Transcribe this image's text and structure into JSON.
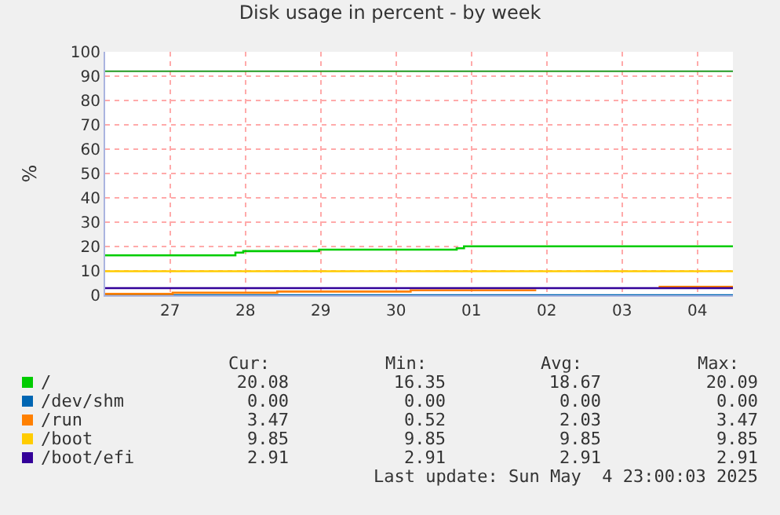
{
  "chart_data": {
    "type": "step",
    "title": "Disk usage in percent - by week",
    "ylabel": "%",
    "xlim": [
      "2025-04-26T15:20",
      "2025-05-04T23:20"
    ],
    "xticks": [
      {
        "value": "2025-04-27T12:00",
        "label": "27"
      },
      {
        "value": "2025-04-28T12:00",
        "label": "28"
      },
      {
        "value": "2025-04-29T12:00",
        "label": "29"
      },
      {
        "value": "2025-04-30T12:00",
        "label": "30"
      },
      {
        "value": "2025-05-01T12:00",
        "label": "01"
      },
      {
        "value": "2025-05-02T12:00",
        "label": "02"
      },
      {
        "value": "2025-05-03T12:00",
        "label": "03"
      },
      {
        "value": "2025-05-04T12:00",
        "label": "04"
      }
    ],
    "ylim": [
      0,
      100
    ],
    "yticks": [
      0,
      10,
      20,
      30,
      40,
      50,
      60,
      70,
      80,
      90,
      100
    ],
    "grid": true,
    "legend": "bottom",
    "marker": "none",
    "line_style": "solid",
    "series": [
      {
        "name": "/",
        "color": "#00cc00",
        "x": [
          "2025-04-26T15:20",
          "2025-04-28T08:50",
          "2025-04-28T11:20",
          "2025-04-29T11:30",
          "2025-05-01T07:20",
          "2025-05-01T09:40",
          "2025-05-04T23:20"
        ],
        "values": [
          16.35,
          17.5,
          18.1,
          18.7,
          19.3,
          20.08,
          20.08
        ]
      },
      {
        "name": "/dev/shm",
        "color": "#0066b3",
        "x": [
          "2025-04-26T15:20",
          "2025-05-04T23:20"
        ],
        "values": [
          0,
          0
        ]
      },
      {
        "name": "/run",
        "color": "#ff8000",
        "x": [
          "2025-04-26T15:20",
          "2025-04-27T12:50",
          "2025-04-28T22:10",
          "2025-04-30T16:40",
          "2025-05-02T08:40",
          "2025-05-03T12:00",
          "2025-05-03T23:40",
          "2025-05-04T23:20"
        ],
        "values": [
          0.52,
          1.0,
          1.5,
          2.0,
          2.0,
          null,
          3.47,
          3.47
        ]
      },
      {
        "name": "/boot",
        "color": "#ffcc00",
        "x": [
          "2025-04-26T15:20",
          "2025-05-04T23:20"
        ],
        "values": [
          9.85,
          9.85
        ]
      },
      {
        "name": "/boot/efi",
        "color": "#330099",
        "x": [
          "2025-04-26T15:20",
          "2025-05-04T23:20"
        ],
        "values": [
          2.91,
          2.91
        ]
      }
    ],
    "ref_lines": [
      {
        "axis": "y",
        "value": 92,
        "label": null,
        "color": "#229922"
      }
    ],
    "annotations": [
      "Cur:",
      "Min:",
      "Avg:",
      "Max:",
      "20.08",
      "16.35",
      "18.67",
      "20.09",
      "0.00",
      "0.00",
      "0.00",
      "0.00",
      "3.47",
      "0.52",
      "2.03",
      "3.47",
      "9.85",
      "9.85",
      "9.85",
      "9.85",
      "2.91",
      "2.91",
      "2.91",
      "2.91",
      "Last update: Sun May  4 23:00:03 2025"
    ]
  }
}
